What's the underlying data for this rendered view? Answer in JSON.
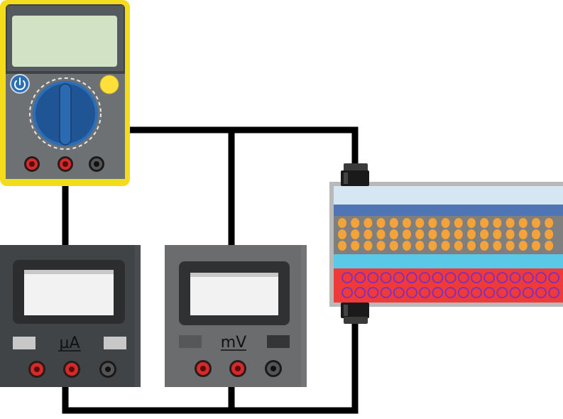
{
  "multimeter": {
    "body_color": "#f5dc1b",
    "face_color": "#404346",
    "screen_color": "#d2e2c4",
    "dial_color": "#1f5594",
    "power_icon": "power-icon",
    "button_color": "#ffe03a"
  },
  "ammeter": {
    "unit_label": "µA"
  },
  "voltmeter": {
    "unit_label": "mV"
  },
  "cell": {
    "layers": [
      {
        "name": "top-electrode",
        "color": "#d6e6f3"
      },
      {
        "name": "blue-layer",
        "color": "#4f75b5"
      },
      {
        "name": "gray-layer",
        "color": "#7f7f7f"
      },
      {
        "name": "cyan-layer",
        "color": "#5ac9e8"
      },
      {
        "name": "red-layer",
        "color": "#ee3a3a"
      }
    ],
    "particle_color": "#f4a23a",
    "ring_color": "#7a2fbf"
  },
  "wire_color": "#000000"
}
